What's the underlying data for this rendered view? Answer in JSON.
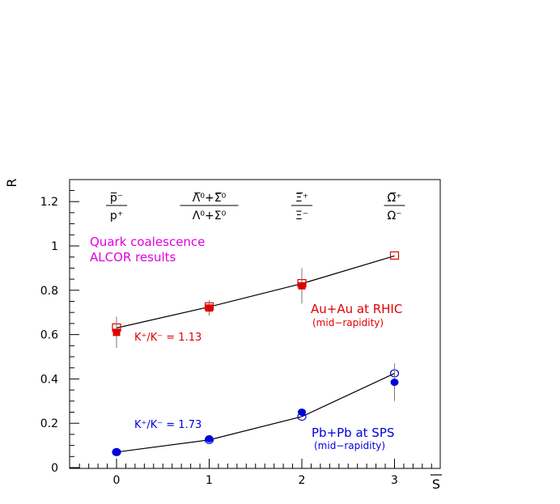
{
  "chart_data": {
    "type": "scatter",
    "title": "",
    "xlabel": "S",
    "ylabel": "R",
    "xlim": [
      -0.5,
      3.5
    ],
    "ylim": [
      0,
      1.3
    ],
    "xticks": [
      "0",
      "1",
      "2",
      "3"
    ],
    "yticks": [
      "0",
      "0.2",
      "0.4",
      "0.6",
      "0.8",
      "1",
      "1.2"
    ],
    "grid": false,
    "ratio_labels": [
      {
        "x": 0,
        "num": "p̅⁻",
        "den": "p⁺"
      },
      {
        "x": 1,
        "num": "Λ̅⁰+Σ̅⁰",
        "den": "Λ⁰+Σ⁰"
      },
      {
        "x": 2,
        "num": "Ξ̅⁺",
        "den": "Ξ⁻"
      },
      {
        "x": 3,
        "num": "Ω̅⁺",
        "den": "Ω⁻"
      }
    ],
    "annotations": {
      "model_line1": "Quark coalescence",
      "model_line2": "ALCOR results",
      "rhic_title": "Au+Au at RHIC",
      "rhic_sub": "(mid−rapidity)",
      "rhic_kk": "K⁺/K⁻ = 1.13",
      "sps_title": "Pb+Pb at SPS",
      "sps_sub": "(mid−rapidity)",
      "sps_kk": "K⁺/K⁻ = 1.73"
    },
    "series": [
      {
        "key": "rhic_alcor",
        "marker": "open-square",
        "color": "#e00000",
        "x": [
          0,
          1,
          2,
          3
        ],
        "y": [
          0.63,
          0.725,
          0.83,
          0.955
        ]
      },
      {
        "key": "rhic_data",
        "marker": "filled-square",
        "color": "#e00000",
        "x": [
          0,
          1,
          2
        ],
        "y": [
          0.61,
          0.72,
          0.82
        ],
        "yerr": [
          0.07,
          0.035,
          0.08
        ]
      },
      {
        "key": "sps_alcor",
        "marker": "open-circle",
        "color": "#0000dd",
        "x": [
          0,
          1,
          2,
          3
        ],
        "y": [
          0.07,
          0.125,
          0.23,
          0.425
        ]
      },
      {
        "key": "sps_data",
        "marker": "filled-circle",
        "color": "#0000dd",
        "x": [
          0,
          1,
          2,
          3
        ],
        "y": [
          0.07,
          0.13,
          0.25,
          0.385
        ],
        "yerr": [
          0.01,
          0.01,
          0.015,
          0.085
        ]
      }
    ],
    "line_series": [
      "rhic_alcor",
      "sps_alcor"
    ]
  }
}
